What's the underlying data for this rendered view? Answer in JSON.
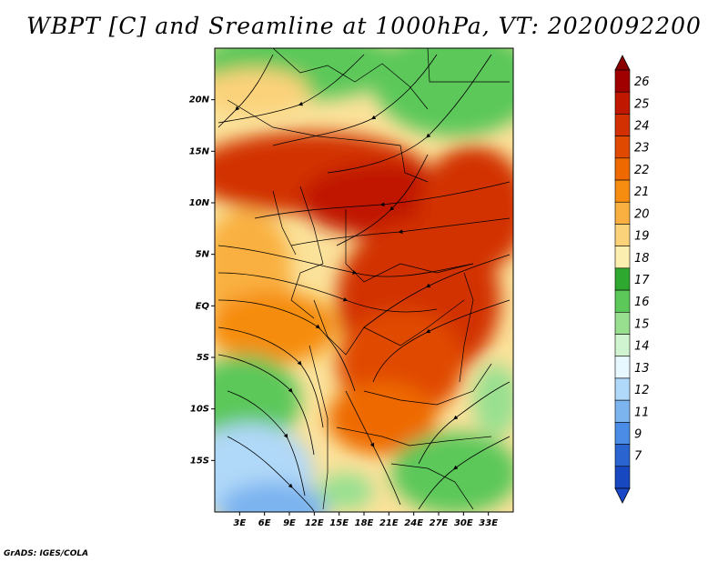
{
  "title": "WBPT [C] and Sreamline at 1000hPa, VT: 2020092200",
  "credit": "GrADS: IGES/COLA",
  "map": {
    "lon_range": [
      0,
      36
    ],
    "lat_range": [
      -20,
      25
    ],
    "lon_ticks": [
      "3E",
      "6E",
      "9E",
      "12E",
      "15E",
      "18E",
      "21E",
      "24E",
      "27E",
      "30E",
      "33E"
    ],
    "lat_ticks": [
      "20N",
      "15N",
      "10N",
      "5N",
      "EQ",
      "5S",
      "10S",
      "15S"
    ]
  },
  "colorbar": {
    "labels": [
      "26",
      "25",
      "24",
      "23",
      "22",
      "21",
      "20",
      "19",
      "18",
      "17",
      "16",
      "15",
      "14",
      "13",
      "12",
      "11",
      "9",
      "7"
    ],
    "colors": [
      "#a00000",
      "#c01800",
      "#d23000",
      "#e04a00",
      "#ee6a00",
      "#f68c10",
      "#f9b040",
      "#fbd27a",
      "#fbeeae",
      "#2fa830",
      "#5cc85a",
      "#98e090",
      "#d0f4d0",
      "#e8f8ff",
      "#b0d8f8",
      "#7cb4f0",
      "#4a8ce6",
      "#2a64d0",
      "#1848c0"
    ],
    "top_arrow_color": "#8a0000",
    "bottom_arrow_color": "#1a48c8"
  }
}
